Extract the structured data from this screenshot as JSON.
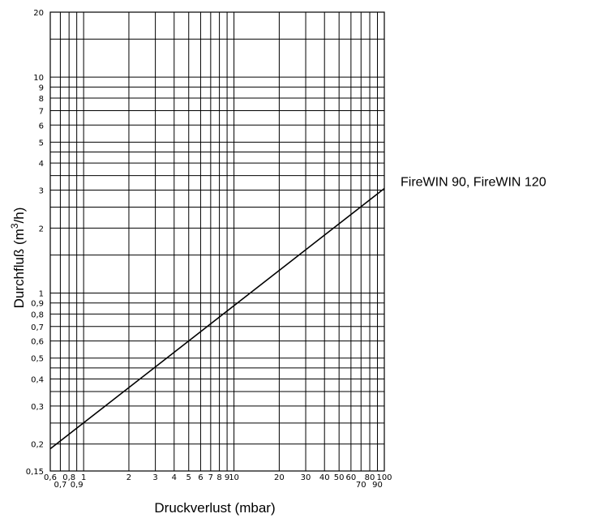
{
  "chart_data": {
    "type": "line",
    "xscale": "log",
    "yscale": "log",
    "xlim": [
      0.6,
      100
    ],
    "ylim": [
      0.15,
      20
    ],
    "grid": true,
    "xlabel": "Druckverlust (mbar)",
    "ylabel_main": "Durchfluß (m",
    "ylabel_sup": "3",
    "ylabel_tail": "/h)",
    "x_ticks": [
      {
        "value": 0.6,
        "label": "0,6",
        "row": 0
      },
      {
        "value": 0.7,
        "label": "0,7",
        "row": 1
      },
      {
        "value": 0.8,
        "label": "0,8",
        "row": 0
      },
      {
        "value": 0.9,
        "label": "0,9",
        "row": 1
      },
      {
        "value": 1,
        "label": "1",
        "row": 0
      },
      {
        "value": 2,
        "label": "2",
        "row": 0
      },
      {
        "value": 3,
        "label": "3",
        "row": 0
      },
      {
        "value": 4,
        "label": "4",
        "row": 0
      },
      {
        "value": 5,
        "label": "5",
        "row": 0
      },
      {
        "value": 6,
        "label": "6",
        "row": 0
      },
      {
        "value": 7,
        "label": "7",
        "row": 0
      },
      {
        "value": 8,
        "label": "8",
        "row": 0
      },
      {
        "value": 9,
        "label": "9",
        "row": 0
      },
      {
        "value": 10,
        "label": "10",
        "row": 0
      },
      {
        "value": 20,
        "label": "20",
        "row": 0
      },
      {
        "value": 30,
        "label": "30",
        "row": 0
      },
      {
        "value": 40,
        "label": "40",
        "row": 0
      },
      {
        "value": 50,
        "label": "50",
        "row": 0
      },
      {
        "value": 60,
        "label": "60",
        "row": 0
      },
      {
        "value": 70,
        "label": "70",
        "row": 1
      },
      {
        "value": 80,
        "label": "80",
        "row": 0
      },
      {
        "value": 90,
        "label": "90",
        "row": 1
      },
      {
        "value": 100,
        "label": "100",
        "row": 0
      }
    ],
    "y_ticks": [
      {
        "value": 0.15,
        "label": "0,15"
      },
      {
        "value": 0.2,
        "label": "0,2"
      },
      {
        "value": 0.3,
        "label": "0,3"
      },
      {
        "value": 0.4,
        "label": "0,4"
      },
      {
        "value": 0.5,
        "label": "0,5"
      },
      {
        "value": 0.6,
        "label": "0,6"
      },
      {
        "value": 0.7,
        "label": "0,7"
      },
      {
        "value": 0.8,
        "label": "0,8"
      },
      {
        "value": 0.9,
        "label": "0,9"
      },
      {
        "value": 1,
        "label": "1"
      },
      {
        "value": 2,
        "label": "2"
      },
      {
        "value": 3,
        "label": "3"
      },
      {
        "value": 4,
        "label": "4"
      },
      {
        "value": 5,
        "label": "5"
      },
      {
        "value": 6,
        "label": "6"
      },
      {
        "value": 7,
        "label": "7"
      },
      {
        "value": 8,
        "label": "8"
      },
      {
        "value": 9,
        "label": "9"
      },
      {
        "value": 10,
        "label": "10"
      },
      {
        "value": 20,
        "label": "20"
      }
    ],
    "x_gridlines": [
      0.6,
      0.7,
      0.8,
      0.9,
      1,
      2,
      3,
      4,
      5,
      6,
      7,
      8,
      9,
      10,
      20,
      30,
      40,
      50,
      60,
      70,
      80,
      90,
      100
    ],
    "y_gridlines": [
      0.15,
      0.2,
      0.25,
      0.3,
      0.35,
      0.4,
      0.45,
      0.5,
      0.6,
      0.7,
      0.8,
      0.9,
      1,
      1.5,
      2,
      2.5,
      3,
      3.5,
      4,
      4.5,
      5,
      6,
      7,
      8,
      9,
      10,
      15,
      20
    ],
    "series": [
      {
        "name": "FireWIN 90, FireWIN 120",
        "color": "#000000",
        "points": [
          {
            "x": 0.6,
            "y": 0.19
          },
          {
            "x": 100,
            "y": 3.05
          }
        ]
      }
    ]
  }
}
